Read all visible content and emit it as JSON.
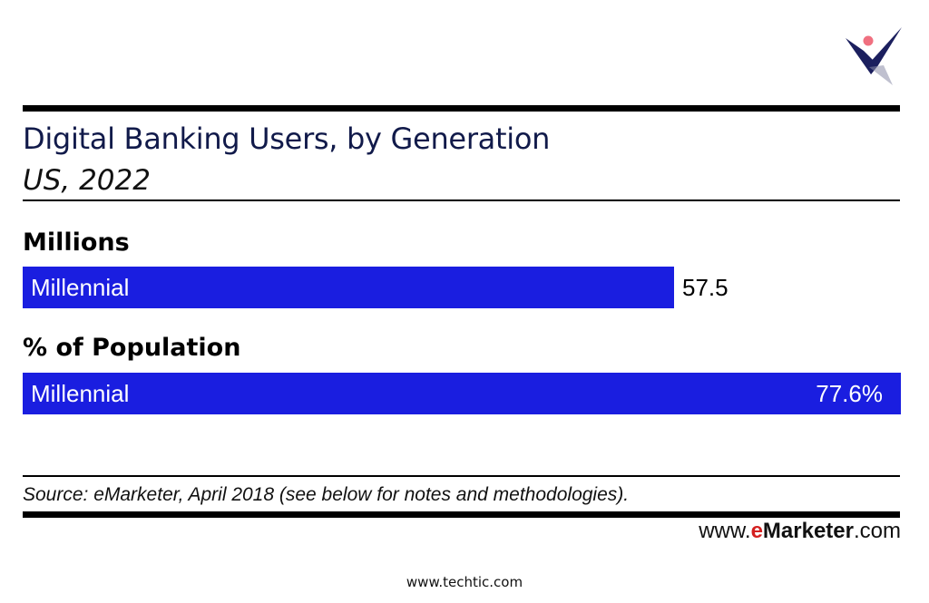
{
  "chart_data": {
    "type": "bar",
    "orientation": "horizontal",
    "title": "Digital Banking Users, by Generation",
    "subtitle": "US, 2022",
    "panels": [
      {
        "label": "Millions",
        "categories": [
          "Millennial"
        ],
        "values": [
          57.5
        ],
        "value_label": "57.5",
        "xlim": [
          0,
          77.5
        ]
      },
      {
        "label": "% of Population",
        "categories": [
          "Millennial"
        ],
        "values": [
          77.6
        ],
        "value_label": "77.6%",
        "xlim": [
          0,
          77.6
        ]
      }
    ],
    "bar_color": "#1a1ee0",
    "grid": false
  },
  "source": "Source: eMarketer, April 2018 (see below for notes and methodologies).",
  "brand": {
    "prefix": "www.",
    "e": "e",
    "name": "Marketer",
    "suffix": ".com"
  },
  "footer_url": "www.techtic.com",
  "logo": {
    "icon": "techtic-logo-icon",
    "colors": {
      "navy": "#1b1f5e",
      "dot": "#f07080"
    }
  }
}
